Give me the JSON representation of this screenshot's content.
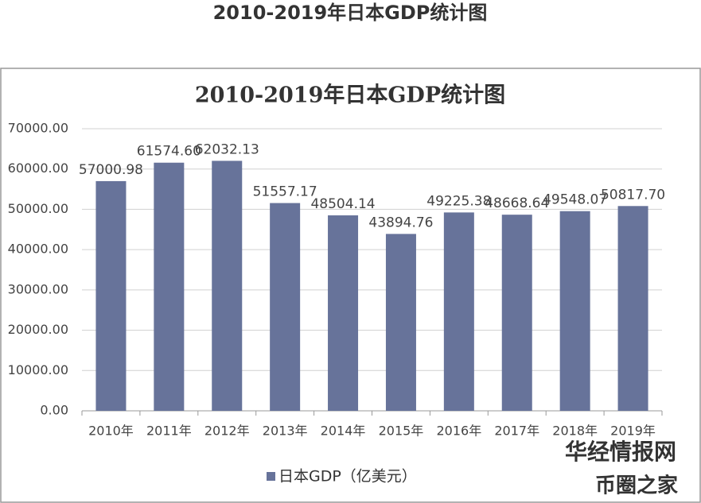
{
  "page_title": "2010-2019年日本GDP统计图",
  "watermarks": [
    "华经情报网",
    "币圈之家"
  ],
  "chart_data": {
    "type": "bar",
    "title": "2010-2019年日本GDP统计图",
    "categories": [
      "2010年",
      "2011年",
      "2012年",
      "2013年",
      "2014年",
      "2015年",
      "2016年",
      "2017年",
      "2018年",
      "2019年"
    ],
    "series": [
      {
        "name": "日本GDP（亿美元）",
        "color": "#67739a",
        "values": [
          57000.98,
          61574.6,
          62032.13,
          51557.17,
          48504.14,
          43894.76,
          49225.38,
          48668.64,
          49548.07,
          50817.7
        ],
        "value_labels": [
          "57000.98",
          "61574.60",
          "62032.13",
          "51557.17",
          "48504.14",
          "43894.76",
          "49225.38",
          "48668.64",
          "49548.07",
          "50817.70"
        ]
      }
    ],
    "ylim": [
      0,
      70000
    ],
    "yticks": [
      {
        "value": 0,
        "label": "0.00"
      },
      {
        "value": 10000,
        "label": "10000.00"
      },
      {
        "value": 20000,
        "label": "20000.00"
      },
      {
        "value": 30000,
        "label": "30000.00"
      },
      {
        "value": 40000,
        "label": "40000.00"
      },
      {
        "value": 50000,
        "label": "50000.00"
      },
      {
        "value": 60000,
        "label": "60000.00"
      },
      {
        "value": 70000,
        "label": "70000.00"
      }
    ],
    "grid": true,
    "legend": "bottom"
  }
}
